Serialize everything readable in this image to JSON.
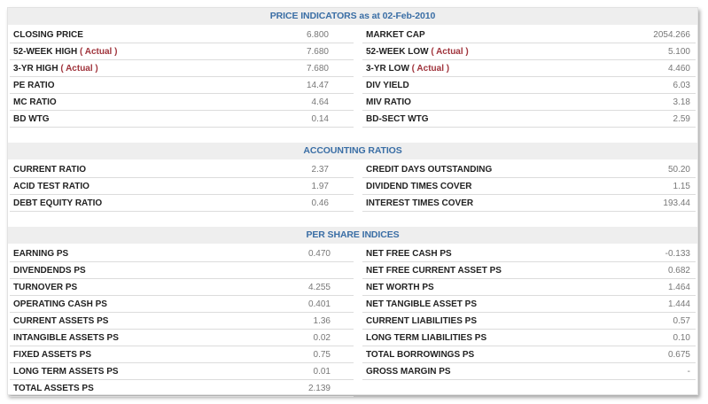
{
  "sections": [
    {
      "title": "PRICE INDICATORS as at 02-Feb-2010",
      "left": [
        {
          "label": "CLOSING PRICE",
          "value": "6.800"
        },
        {
          "label": "52-WEEK HIGH",
          "note": "( Actual )",
          "value": "7.680"
        },
        {
          "label": "3-YR HIGH",
          "note": "( Actual )",
          "value": "7.680"
        },
        {
          "label": "PE RATIO",
          "value": "14.47"
        },
        {
          "label": "MC RATIO",
          "value": "4.64"
        },
        {
          "label": "BD WTG",
          "value": "0.14"
        }
      ],
      "right": [
        {
          "label": "MARKET CAP",
          "value": "2054.266"
        },
        {
          "label": "52-WEEK LOW",
          "note": "( Actual )",
          "value": "5.100"
        },
        {
          "label": "3-YR LOW",
          "note": "( Actual )",
          "value": "4.460"
        },
        {
          "label": "DIV YIELD",
          "value": "6.03"
        },
        {
          "label": "MIV RATIO",
          "value": "3.18"
        },
        {
          "label": "BD-SECT WTG",
          "value": "2.59"
        }
      ]
    },
    {
      "title": "ACCOUNTING RATIOS",
      "left": [
        {
          "label": "CURRENT RATIO",
          "value": "2.37"
        },
        {
          "label": "ACID TEST RATIO",
          "value": "1.97"
        },
        {
          "label": "DEBT EQUITY RATIO",
          "value": "0.46"
        }
      ],
      "right": [
        {
          "label": "CREDIT DAYS OUTSTANDING",
          "value": "50.20"
        },
        {
          "label": "DIVIDEND TIMES COVER",
          "value": "1.15"
        },
        {
          "label": "INTEREST TIMES COVER",
          "value": "193.44"
        }
      ]
    },
    {
      "title": "PER SHARE INDICES",
      "left": [
        {
          "label": "EARNING PS",
          "value": "0.470"
        },
        {
          "label": "DIVENDENDS PS",
          "value": ""
        },
        {
          "label": "TURNOVER PS",
          "value": "4.255"
        },
        {
          "label": "OPERATING CASH PS",
          "value": "0.401"
        },
        {
          "label": "CURRENT ASSETS PS",
          "value": "1.36"
        },
        {
          "label": "INTANGIBLE ASSETS PS",
          "value": "0.02"
        },
        {
          "label": "FIXED ASSETS PS",
          "value": "0.75"
        },
        {
          "label": "LONG TERM ASSETS PS",
          "value": "0.01"
        },
        {
          "label": "TOTAL ASSETS PS",
          "value": "2.139"
        }
      ],
      "right": [
        {
          "label": "NET FREE CASH PS",
          "value": "-0.133"
        },
        {
          "label": "NET FREE CURRENT ASSET PS",
          "value": "0.682"
        },
        {
          "label": "NET WORTH PS",
          "value": "1.464"
        },
        {
          "label": "NET TANGIBLE ASSET PS",
          "value": "1.444"
        },
        {
          "label": "CURRENT LIABILITIES PS",
          "value": "0.57"
        },
        {
          "label": "LONG TERM LIABILITIES PS",
          "value": "0.10"
        },
        {
          "label": "TOTAL BORROWINGS PS",
          "value": "0.675"
        },
        {
          "label": "GROSS MARGIN PS",
          "value": "-"
        }
      ]
    }
  ]
}
